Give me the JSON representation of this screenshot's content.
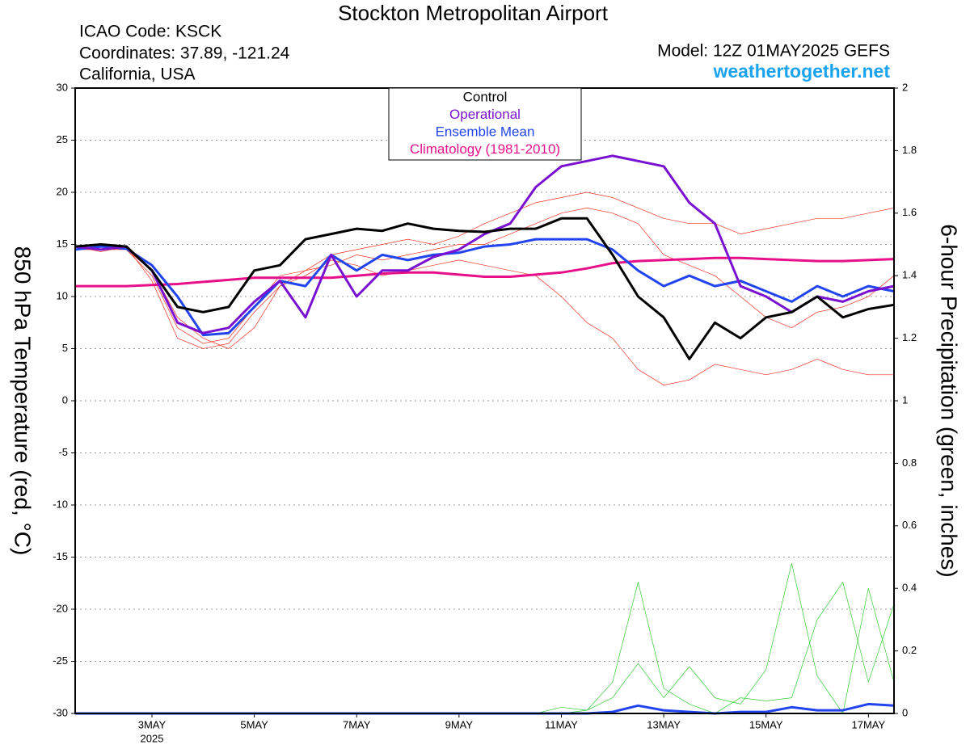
{
  "chart_data": {
    "type": "line",
    "title": "Stockton Metropolitan Airport",
    "info_lines": [
      "ICAO Code: KSCK",
      "Coordinates: 37.89, -121.24",
      "California, USA"
    ],
    "model": "Model: 12Z 01MAY2025 GEFS",
    "site": "weathertogether.net",
    "ylabel": "850 hPa Temperature (red, °C)",
    "y2label": "6-hour Precipitation (green, inches)",
    "x_sublabel": "2025",
    "x": [
      1.5,
      2,
      2.5,
      3,
      3.5,
      4,
      4.5,
      5,
      5.5,
      6,
      6.5,
      7,
      7.5,
      8,
      8.5,
      9,
      9.5,
      10,
      10.5,
      11,
      11.5,
      12,
      12.5,
      13,
      13.5,
      14,
      14.5,
      15,
      15.5,
      16,
      16.5,
      17,
      17.5
    ],
    "xlim": [
      1.5,
      17.5
    ],
    "xticks": [
      {
        "value": 3,
        "label": "3MAY"
      },
      {
        "value": 5,
        "label": "5MAY"
      },
      {
        "value": 7,
        "label": "7MAY"
      },
      {
        "value": 9,
        "label": "9MAY"
      },
      {
        "value": 11,
        "label": "11MAY"
      },
      {
        "value": 13,
        "label": "13MAY"
      },
      {
        "value": 15,
        "label": "15MAY"
      },
      {
        "value": 17,
        "label": "17MAY"
      }
    ],
    "ylim": [
      -30,
      30
    ],
    "yticks": [
      30,
      25,
      20,
      15,
      10,
      5,
      0,
      -5,
      -10,
      -15,
      -20,
      -25,
      -30
    ],
    "y2lim": [
      0,
      2
    ],
    "y2ticks": [
      2,
      1.8,
      1.6,
      1.4,
      1.2,
      1,
      0.8,
      0.6,
      0.4,
      0.2,
      0
    ],
    "grid": true,
    "series": [
      {
        "color": "#ee3322",
        "width": 0.7,
        "values": [
          14.5,
          14.8,
          14.5,
          12,
          7,
          5.5,
          6,
          9,
          12,
          12.5,
          14,
          14.5,
          15,
          15.5,
          15,
          15.8,
          17,
          18,
          19,
          19.5,
          20,
          19.5,
          18.5,
          17.5,
          17,
          17,
          16,
          16.5,
          17,
          17.5,
          17.5,
          18,
          18.5
        ]
      },
      {
        "color": "#ee3322",
        "width": 0.7,
        "values": [
          14.8,
          14.3,
          14.8,
          11.5,
          6,
          5,
          5.5,
          8.5,
          11,
          12,
          13.5,
          13,
          12,
          12.5,
          13,
          13.5,
          13,
          12.5,
          12,
          10,
          7.5,
          6,
          3,
          1.5,
          2,
          3.5,
          3,
          2.5,
          3,
          4,
          3,
          2.5,
          2.5
        ]
      },
      {
        "color": "#ee3322",
        "width": 0.7,
        "values": [
          14.5,
          14.5,
          14.5,
          12.5,
          8,
          6,
          5,
          7,
          11,
          12.5,
          13,
          14,
          13.5,
          14,
          14.5,
          15,
          15,
          16,
          17,
          18,
          18.5,
          18,
          17,
          14,
          13,
          12,
          10,
          8,
          7,
          8.5,
          9,
          10,
          12
        ]
      },
      {
        "color": "#33cc33",
        "width": 0.7,
        "axis": "y2",
        "values": [
          0,
          0,
          0,
          0,
          0,
          0,
          0,
          0,
          0,
          0,
          0,
          0,
          0,
          0,
          0,
          0,
          0,
          0,
          0,
          0,
          0.01,
          0.1,
          0.42,
          0.08,
          0.03,
          0,
          0.05,
          0.04,
          0.05,
          0.3,
          0.42,
          0.1,
          0.35
        ]
      },
      {
        "color": "#33cc33",
        "width": 0.7,
        "axis": "y2",
        "values": [
          0,
          0,
          0,
          0,
          0,
          0,
          0,
          0,
          0,
          0,
          0,
          0,
          0,
          0,
          0,
          0,
          0,
          0,
          0,
          0.02,
          0.01,
          0.05,
          0.16,
          0.05,
          0.15,
          0.05,
          0.03,
          0.14,
          0.48,
          0.12,
          0,
          0.4,
          0.1
        ]
      },
      {
        "color": "#2244ee",
        "width": 3,
        "axis": "y2",
        "values": [
          0,
          0,
          0,
          0,
          0,
          0,
          0,
          0,
          0,
          0,
          0,
          0,
          0,
          0,
          0,
          0,
          0,
          0,
          0,
          0,
          0,
          0.005,
          0.025,
          0.01,
          0.005,
          0,
          0.005,
          0.005,
          0.02,
          0.01,
          0.01,
          0.03,
          0.025
        ]
      },
      {
        "name": "Climatology (1981-2010)",
        "color": "#e8108a",
        "width": 3,
        "values": [
          11,
          11,
          11,
          11.1,
          11.2,
          11.4,
          11.6,
          11.8,
          11.8,
          11.8,
          11.8,
          12,
          12.2,
          12.3,
          12.3,
          12.1,
          11.9,
          11.9,
          12.1,
          12.3,
          12.7,
          13.2,
          13.4,
          13.5,
          13.6,
          13.7,
          13.7,
          13.6,
          13.5,
          13.4,
          13.4,
          13.5,
          13.6
        ]
      },
      {
        "name": "Ensemble Mean",
        "color": "#2244ee",
        "width": 3,
        "values": [
          14.5,
          14.8,
          14.6,
          13,
          10,
          6.3,
          6.5,
          9,
          11.5,
          11,
          14,
          12.5,
          14,
          13.5,
          14,
          14.2,
          14.8,
          15,
          15.5,
          15.5,
          15.5,
          14.5,
          12.5,
          11,
          12,
          11,
          11.5,
          10.5,
          9.5,
          11,
          10,
          11,
          10.5
        ]
      },
      {
        "name": "Operational",
        "color": "#7a10d0",
        "width": 3,
        "values": [
          14.8,
          14.5,
          14.8,
          12.5,
          7.5,
          6.5,
          7,
          9.5,
          11.5,
          8,
          14,
          10,
          12.5,
          12.5,
          13.8,
          14.5,
          16,
          17,
          20.5,
          22.5,
          23,
          23.5,
          23,
          22.5,
          19,
          17,
          11,
          10,
          8.5,
          10,
          9.5,
          10.5,
          11
        ]
      },
      {
        "name": "Control",
        "color": "#000000",
        "width": 3,
        "values": [
          14.8,
          15,
          14.8,
          12.5,
          9,
          8.5,
          9,
          12.5,
          13,
          15.5,
          16,
          16.5,
          16.3,
          17,
          16.5,
          16.3,
          16.2,
          16.5,
          16.5,
          17.5,
          17.5,
          14,
          10,
          8,
          4,
          7.5,
          6,
          8,
          8.5,
          10,
          8,
          8.8,
          9.2
        ]
      }
    ]
  }
}
